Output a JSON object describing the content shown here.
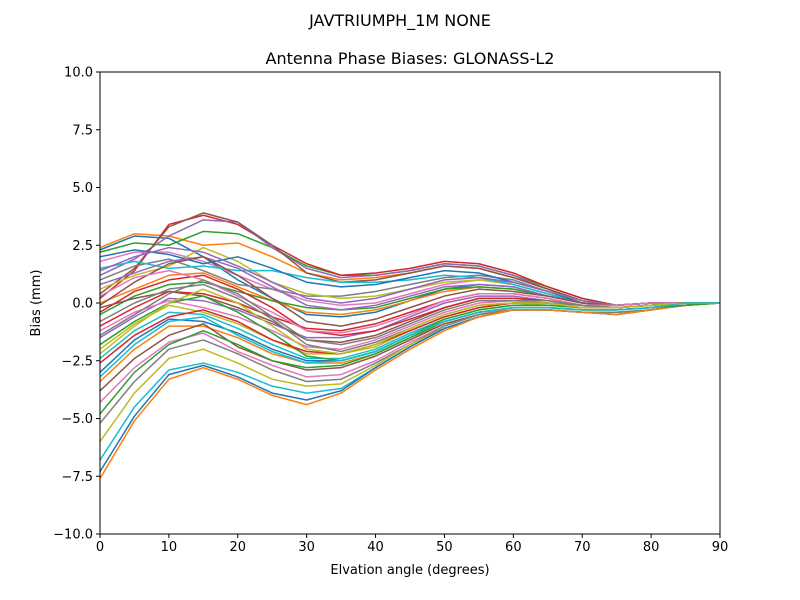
{
  "figure": {
    "suptitle": "JAVTRIUMPH_1M   NONE"
  },
  "chart_data": {
    "type": "line",
    "title": "Antenna Phase Biases: GLONASS-L2",
    "xlabel": "Elvation angle (degrees)",
    "ylabel": "Bias (mm)",
    "xlim": [
      0,
      90
    ],
    "ylim": [
      -10,
      10
    ],
    "grid": false,
    "legend": "none",
    "x_ticks": [
      0,
      10,
      20,
      30,
      40,
      50,
      60,
      70,
      80,
      90
    ],
    "y_ticks": [
      -10.0,
      -7.5,
      -5.0,
      -2.5,
      0.0,
      2.5,
      5.0,
      7.5,
      10.0
    ],
    "x_tick_labels": [
      "0",
      "10",
      "20",
      "30",
      "40",
      "50",
      "60",
      "70",
      "80",
      "90"
    ],
    "y_tick_labels": [
      "−10.0",
      "−7.5",
      "−5.0",
      "−2.5",
      "0.0",
      "2.5",
      "5.0",
      "7.5",
      "10.0"
    ],
    "colors": [
      "#1f77b4",
      "#ff7f0e",
      "#2ca02c",
      "#d62728",
      "#9467bd",
      "#8c564b",
      "#e377c2",
      "#7f7f7f",
      "#bcbd22",
      "#17becf"
    ],
    "x": [
      0,
      5,
      10,
      15,
      20,
      25,
      30,
      35,
      40,
      45,
      50,
      55,
      60,
      65,
      70,
      75,
      80,
      85,
      90
    ],
    "series": [
      {
        "values": [
          2.3,
          2.9,
          2.8,
          2.0,
          1.0,
          0.2,
          -0.5,
          -0.6,
          -0.4,
          0.1,
          0.6,
          0.8,
          0.7,
          0.3,
          0.0,
          -0.1,
          0.0,
          0.0,
          0.0
        ]
      },
      {
        "values": [
          2.4,
          3.0,
          2.9,
          2.5,
          2.6,
          2.0,
          1.3,
          1.0,
          1.1,
          1.3,
          1.6,
          1.5,
          1.1,
          0.6,
          0.1,
          -0.1,
          0.0,
          0.0,
          0.0
        ]
      },
      {
        "values": [
          2.2,
          2.6,
          2.5,
          3.1,
          3.0,
          2.4,
          1.6,
          1.2,
          1.2,
          1.4,
          1.7,
          1.6,
          1.2,
          0.7,
          0.2,
          -0.1,
          0.0,
          0.0,
          0.0
        ]
      },
      {
        "values": [
          0.2,
          1.4,
          3.4,
          3.8,
          3.4,
          2.5,
          1.7,
          1.2,
          1.3,
          1.5,
          1.8,
          1.7,
          1.3,
          0.7,
          0.2,
          -0.1,
          0.0,
          0.0,
          0.0
        ]
      },
      {
        "values": [
          1.2,
          1.9,
          2.9,
          3.6,
          3.5,
          2.4,
          1.5,
          1.1,
          1.2,
          1.4,
          1.7,
          1.6,
          1.2,
          0.6,
          0.1,
          -0.1,
          0.0,
          0.0,
          0.0
        ]
      },
      {
        "values": [
          0.4,
          1.5,
          3.3,
          3.9,
          3.5,
          2.5,
          1.3,
          0.9,
          1.0,
          1.3,
          1.6,
          1.5,
          1.1,
          0.6,
          0.1,
          -0.1,
          0.0,
          0.0,
          0.0
        ]
      },
      {
        "values": [
          1.8,
          2.2,
          2.2,
          1.8,
          1.2,
          0.6,
          0.1,
          -0.1,
          0.0,
          0.4,
          0.8,
          1.0,
          0.9,
          0.5,
          0.1,
          -0.1,
          0.0,
          0.0,
          0.0
        ]
      },
      {
        "values": [
          1.0,
          1.6,
          1.9,
          1.4,
          0.8,
          0.6,
          0.3,
          0.3,
          0.5,
          0.8,
          1.1,
          1.2,
          1.0,
          0.5,
          0.1,
          -0.1,
          0.0,
          0.0,
          0.0
        ]
      },
      {
        "values": [
          0.6,
          1.2,
          1.6,
          2.4,
          1.8,
          0.9,
          0.4,
          0.2,
          0.3,
          0.6,
          0.9,
          1.0,
          0.8,
          0.4,
          0.0,
          -0.1,
          0.0,
          0.0,
          0.0
        ]
      },
      {
        "values": [
          1.5,
          1.8,
          1.5,
          1.6,
          1.4,
          1.4,
          1.1,
          0.9,
          0.9,
          1.0,
          1.2,
          1.1,
          0.8,
          0.4,
          0.0,
          -0.1,
          0.0,
          0.0,
          0.0
        ]
      },
      {
        "values": [
          2.0,
          2.3,
          2.1,
          1.7,
          2.0,
          1.5,
          0.9,
          0.7,
          0.8,
          1.1,
          1.4,
          1.3,
          0.9,
          0.5,
          0.0,
          -0.1,
          0.0,
          0.0,
          0.0
        ]
      },
      {
        "values": [
          0.0,
          0.6,
          1.2,
          1.3,
          0.7,
          0.1,
          -0.4,
          -0.5,
          -0.3,
          0.1,
          0.5,
          0.7,
          0.6,
          0.3,
          0.0,
          -0.1,
          0.0,
          0.0,
          0.0
        ]
      },
      {
        "values": [
          -0.5,
          0.3,
          0.8,
          0.9,
          0.5,
          0.1,
          -0.2,
          -0.3,
          -0.2,
          0.2,
          0.6,
          0.7,
          0.6,
          0.3,
          0.0,
          -0.1,
          0.0,
          0.0,
          0.0
        ]
      },
      {
        "values": [
          -1.0,
          -0.2,
          0.5,
          0.4,
          0.0,
          -0.6,
          -1.1,
          -1.2,
          -0.9,
          -0.4,
          0.1,
          0.4,
          0.4,
          0.2,
          -0.1,
          -0.1,
          0.0,
          0.0,
          0.0
        ]
      },
      {
        "values": [
          -1.5,
          -0.6,
          0.2,
          0.1,
          -0.3,
          -0.9,
          -1.5,
          -1.5,
          -1.2,
          -0.6,
          0.0,
          0.3,
          0.3,
          0.1,
          -0.1,
          -0.1,
          0.0,
          0.0,
          0.0
        ]
      },
      {
        "values": [
          -0.2,
          0.2,
          0.5,
          0.3,
          -0.2,
          -0.8,
          -1.6,
          -1.7,
          -1.4,
          -0.8,
          -0.2,
          0.2,
          0.2,
          0.1,
          -0.1,
          -0.1,
          0.0,
          0.0,
          0.0
        ]
      },
      {
        "values": [
          -1.2,
          -0.4,
          0.1,
          -0.2,
          -0.6,
          -1.2,
          -1.9,
          -2.0,
          -1.6,
          -1.0,
          -0.4,
          0.0,
          0.1,
          0.0,
          -0.1,
          -0.2,
          -0.1,
          0.0,
          0.0
        ]
      },
      {
        "values": [
          -0.8,
          0.0,
          0.6,
          0.8,
          0.2,
          -0.7,
          -1.8,
          -2.1,
          -1.7,
          -1.1,
          -0.5,
          -0.1,
          0.0,
          0.0,
          -0.1,
          -0.2,
          -0.1,
          0.0,
          0.0
        ]
      },
      {
        "values": [
          -2.0,
          -0.9,
          -0.1,
          -0.4,
          -0.9,
          -1.6,
          -2.2,
          -2.2,
          -1.9,
          -1.2,
          -0.6,
          -0.2,
          0.0,
          -0.1,
          -0.2,
          -0.2,
          -0.1,
          0.0,
          0.0
        ]
      },
      {
        "values": [
          -2.4,
          -1.2,
          -0.4,
          -0.5,
          -1.1,
          -1.8,
          -2.4,
          -2.4,
          -2.0,
          -1.3,
          -0.7,
          -0.3,
          -0.1,
          -0.1,
          -0.2,
          -0.2,
          -0.1,
          0.0,
          0.0
        ]
      },
      {
        "values": [
          -3.0,
          -1.6,
          -0.7,
          -0.8,
          -1.3,
          -2.0,
          -2.5,
          -2.5,
          -2.1,
          -1.4,
          -0.8,
          -0.4,
          -0.2,
          -0.2,
          -0.3,
          -0.3,
          -0.2,
          0.0,
          0.0
        ]
      },
      {
        "values": [
          -3.4,
          -2.0,
          -1.0,
          -1.0,
          -1.5,
          -2.2,
          -2.6,
          -2.6,
          -2.2,
          -1.5,
          -0.9,
          -0.5,
          -0.2,
          -0.2,
          -0.3,
          -0.3,
          -0.2,
          0.0,
          0.0
        ]
      },
      {
        "values": [
          -1.8,
          -0.8,
          0.0,
          0.3,
          -0.4,
          -1.3,
          -2.3,
          -2.5,
          -2.1,
          -1.4,
          -0.7,
          -0.3,
          -0.1,
          -0.1,
          -0.2,
          -0.2,
          -0.1,
          0.0,
          0.0
        ]
      },
      {
        "values": [
          -0.4,
          0.5,
          1.0,
          1.2,
          0.6,
          -0.2,
          -1.2,
          -1.4,
          -1.2,
          -0.7,
          -0.2,
          0.2,
          0.2,
          0.1,
          -0.1,
          -0.1,
          0.0,
          0.0,
          0.0
        ]
      },
      {
        "values": [
          0.8,
          1.3,
          1.8,
          2.0,
          1.5,
          0.7,
          -0.1,
          -0.3,
          -0.1,
          0.3,
          0.7,
          0.8,
          0.7,
          0.3,
          0.0,
          -0.1,
          0.0,
          0.0,
          0.0
        ]
      },
      {
        "values": [
          -3.8,
          -2.4,
          -1.4,
          -0.9,
          -1.9,
          -2.5,
          -2.9,
          -2.8,
          -2.3,
          -1.6,
          -0.9,
          -0.5,
          -0.3,
          -0.3,
          -0.4,
          -0.4,
          -0.3,
          -0.1,
          0.0
        ]
      },
      {
        "values": [
          -4.3,
          -2.8,
          -1.7,
          -1.3,
          -2.1,
          -2.7,
          -3.2,
          -3.1,
          -2.5,
          -1.7,
          -1.0,
          -0.5,
          -0.3,
          -0.3,
          -0.4,
          -0.4,
          -0.3,
          -0.1,
          0.0
        ]
      },
      {
        "values": [
          -5.2,
          -3.4,
          -2.0,
          -1.6,
          -2.2,
          -2.9,
          -3.4,
          -3.3,
          -2.6,
          -1.8,
          -1.0,
          -0.5,
          -0.3,
          -0.3,
          -0.4,
          -0.4,
          -0.3,
          -0.1,
          0.0
        ]
      },
      {
        "values": [
          -6.0,
          -3.9,
          -2.4,
          -2.0,
          -2.6,
          -3.3,
          -3.6,
          -3.5,
          -2.7,
          -1.8,
          -1.1,
          -0.6,
          -0.3,
          -0.3,
          -0.4,
          -0.5,
          -0.3,
          -0.1,
          0.0
        ]
      },
      {
        "values": [
          -6.8,
          -4.5,
          -2.9,
          -2.6,
          -3.0,
          -3.6,
          -3.9,
          -3.7,
          -2.8,
          -1.9,
          -1.1,
          -0.6,
          -0.3,
          -0.3,
          -0.4,
          -0.5,
          -0.3,
          -0.1,
          0.0
        ]
      },
      {
        "values": [
          -7.3,
          -4.9,
          -3.1,
          -2.7,
          -3.2,
          -3.9,
          -4.2,
          -3.8,
          -2.8,
          -1.9,
          -1.1,
          -0.6,
          -0.3,
          -0.3,
          -0.4,
          -0.5,
          -0.3,
          -0.1,
          0.0
        ]
      },
      {
        "values": [
          -7.6,
          -5.1,
          -3.3,
          -2.8,
          -3.3,
          -4.0,
          -4.4,
          -3.9,
          -2.9,
          -2.0,
          -1.2,
          -0.6,
          -0.3,
          -0.3,
          -0.4,
          -0.5,
          -0.3,
          -0.1,
          0.0
        ]
      },
      {
        "values": [
          -4.8,
          -3.0,
          -1.8,
          -1.2,
          -1.8,
          -2.5,
          -2.8,
          -2.7,
          -2.2,
          -1.5,
          -0.8,
          -0.4,
          -0.2,
          -0.2,
          -0.3,
          -0.3,
          -0.2,
          -0.1,
          0.0
        ]
      },
      {
        "values": [
          -2.6,
          -1.4,
          -0.6,
          -0.3,
          -0.8,
          -1.6,
          -2.1,
          -2.2,
          -1.8,
          -1.2,
          -0.6,
          -0.2,
          0.0,
          0.0,
          -0.2,
          -0.2,
          -0.1,
          0.0,
          0.0
        ]
      },
      {
        "values": [
          1.4,
          2.0,
          2.4,
          2.2,
          1.6,
          0.9,
          0.2,
          0.0,
          0.2,
          0.6,
          1.0,
          1.1,
          0.9,
          0.5,
          0.1,
          -0.1,
          0.0,
          0.0,
          0.0
        ]
      },
      {
        "values": [
          -0.1,
          0.9,
          1.7,
          2.0,
          1.2,
          0.2,
          -0.8,
          -1.0,
          -0.7,
          -0.2,
          0.3,
          0.6,
          0.5,
          0.3,
          0.0,
          -0.1,
          0.0,
          0.0,
          0.0
        ]
      },
      {
        "values": [
          0.3,
          1.1,
          1.4,
          1.0,
          0.3,
          -0.4,
          -1.2,
          -1.3,
          -1.0,
          -0.5,
          0.1,
          0.4,
          0.4,
          0.2,
          -0.1,
          -0.1,
          0.0,
          0.0,
          0.0
        ]
      },
      {
        "values": [
          -1.4,
          -0.5,
          0.4,
          1.0,
          0.4,
          -0.6,
          -1.6,
          -1.8,
          -1.5,
          -0.9,
          -0.3,
          0.1,
          0.1,
          0.1,
          -0.1,
          -0.2,
          -0.1,
          0.0,
          0.0
        ]
      },
      {
        "values": [
          -2.2,
          -1.0,
          0.0,
          0.6,
          0.0,
          -1.0,
          -2.0,
          -2.2,
          -1.8,
          -1.1,
          -0.5,
          -0.1,
          0.0,
          0.0,
          -0.2,
          -0.2,
          -0.1,
          0.0,
          0.0
        ]
      },
      {
        "values": [
          -3.2,
          -1.8,
          -0.8,
          -0.6,
          -1.4,
          -2.1,
          -2.6,
          -2.5,
          -2.1,
          -1.4,
          -0.8,
          -0.4,
          -0.2,
          -0.2,
          -0.3,
          -0.3,
          -0.2,
          0.0,
          0.0
        ]
      }
    ]
  }
}
